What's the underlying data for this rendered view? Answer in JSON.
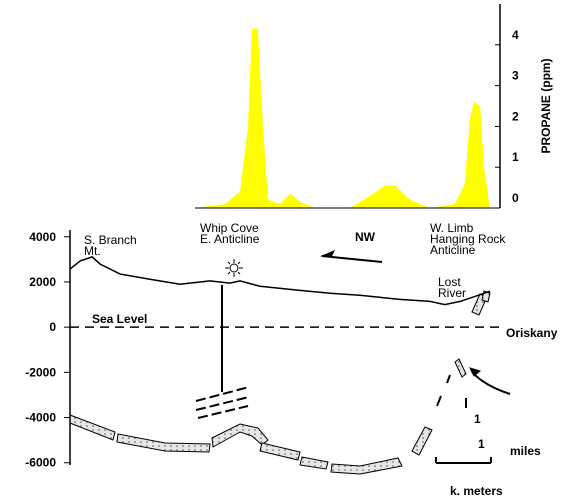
{
  "chart_data": [
    {
      "type": "area",
      "y_label": "PROPANE (ppm)",
      "color": "#ffff00",
      "xlim": [
        0,
        100
      ],
      "ylim": [
        0,
        5
      ],
      "yticks": [
        0,
        1,
        2,
        3,
        4
      ],
      "x": [
        29.4,
        36.5,
        40,
        41.9,
        42.8,
        44.2,
        45.4,
        46.6,
        49.4,
        51.8,
        54.1,
        57.6,
        65.9,
        70.6,
        74.1,
        76.5,
        80,
        84.7,
        90.6,
        92.9,
        94.1,
        95.1,
        96.5,
        97.4,
        98.8
      ],
      "values": [
        0,
        0.1,
        0.4,
        2,
        4.4,
        4.4,
        2,
        0.2,
        0.1,
        0.35,
        0.15,
        0,
        0,
        0.3,
        0.55,
        0.55,
        0.2,
        0,
        0.1,
        0.6,
        2.2,
        2.6,
        2.5,
        1,
        0
      ]
    },
    {
      "type": "line",
      "color": "#000000",
      "xlim": [
        0,
        100
      ],
      "ylim": [
        -6100,
        4300
      ],
      "yticks": [
        4000,
        2000,
        0,
        -2000,
        -4000,
        -6000
      ],
      "x": [
        0,
        2.4,
        5.2,
        7.1,
        11.8,
        18.8,
        25.9,
        32.9,
        37.6,
        40,
        44.7,
        54.1,
        61.2,
        68.2,
        77.6,
        84.7,
        88.2,
        91.8,
        95.3,
        98.8
      ],
      "values": [
        2570,
        2930,
        3110,
        2790,
        2350,
        2120,
        1900,
        2050,
        1950,
        2050,
        1810,
        1630,
        1500,
        1410,
        1230,
        1140,
        1000,
        1140,
        1360,
        1590
      ],
      "annotations": [
        [
          "S. Branch",
          "Mt."
        ],
        [
          "Whip Cove",
          "E. Anticline"
        ],
        [
          "NW"
        ],
        [
          "W. Limb",
          "Hanging Rock",
          "Anticline"
        ],
        [
          "Lost",
          "River"
        ],
        [
          "Sea Level"
        ],
        [
          "Oriskany"
        ],
        [
          "1"
        ],
        [
          "1"
        ],
        [
          "miles"
        ],
        [
          "k. meters"
        ]
      ]
    }
  ]
}
